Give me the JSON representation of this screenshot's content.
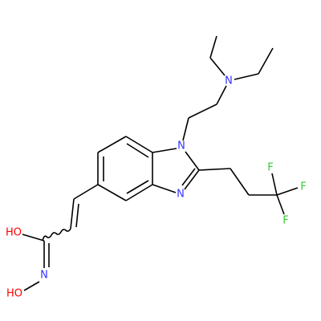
{
  "atoms": {
    "n_amine": "N",
    "n1": "N",
    "n3": "N",
    "f1": "F",
    "f2": "F",
    "f3": "F",
    "oh_top": "HO",
    "n_oxime": "N",
    "oh_bottom": "HO"
  }
}
